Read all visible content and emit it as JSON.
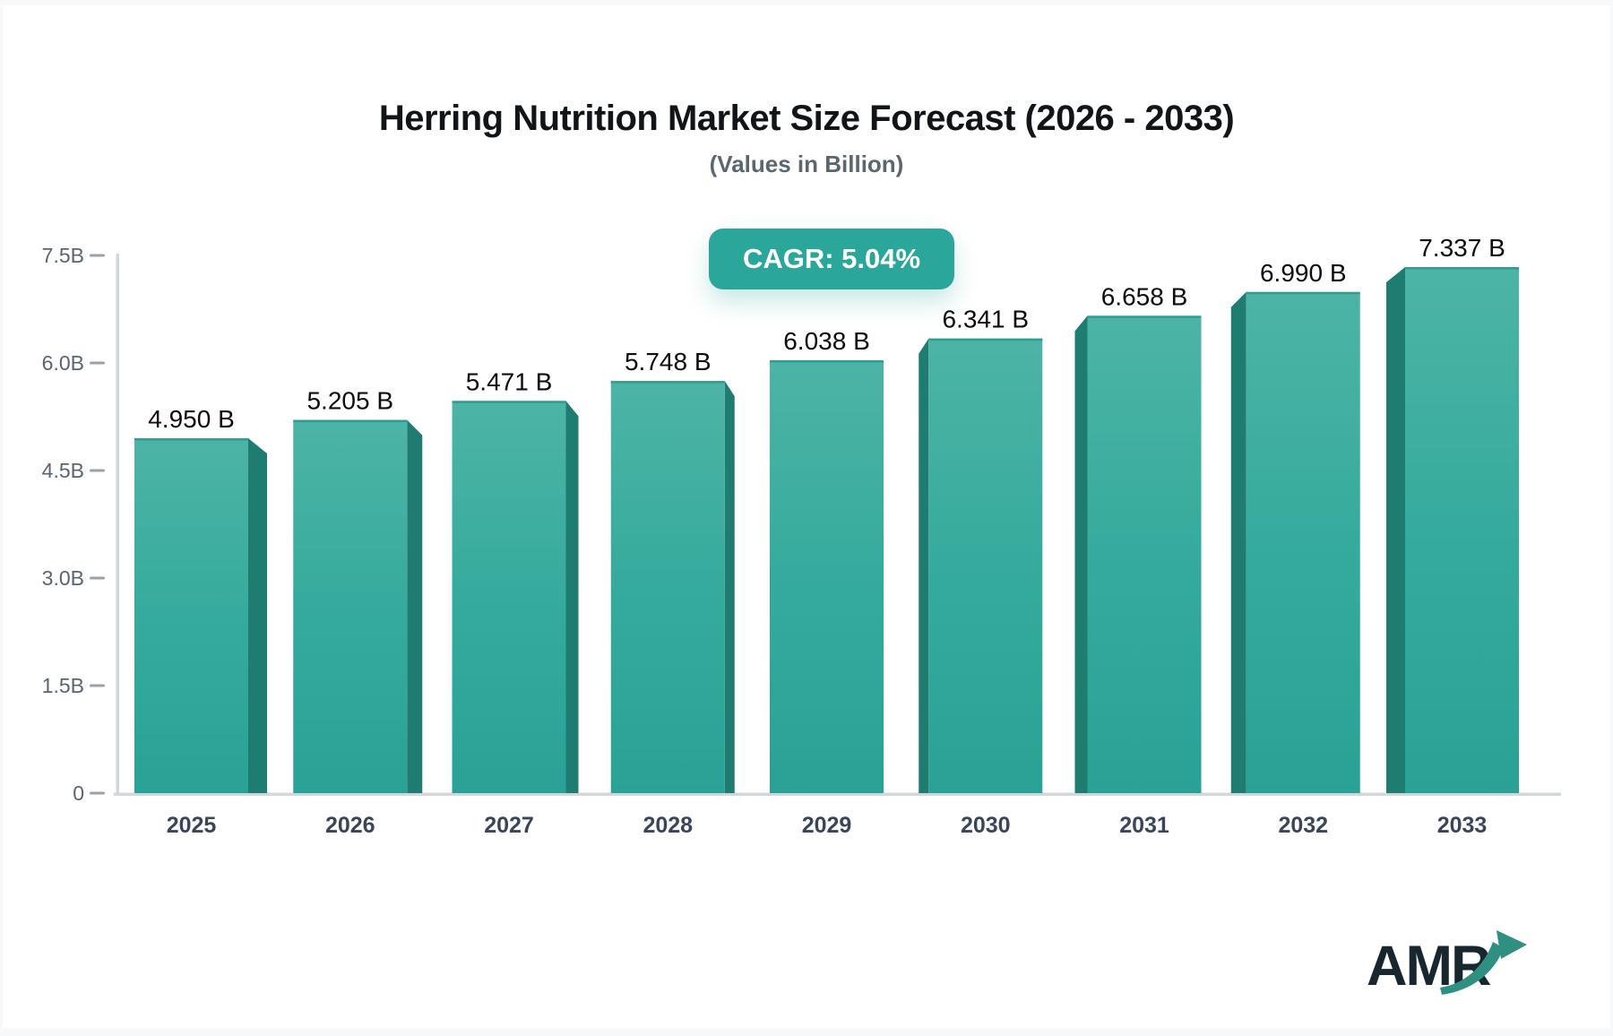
{
  "page": {
    "logo_text": "AMR"
  },
  "colors": {
    "accent_teal": "#2aa79a",
    "bar_face_top": "#4db4a6",
    "bar_face_bottom": "#29a295",
    "bar_side": "#1e7d70",
    "bar_top_rim": "#2f9d90",
    "axis_line": "#d2d7dd",
    "tick_dash": "#99a1ab",
    "title_text": "#121517",
    "subtitle_text": "#5b6770",
    "value_label_text": "#0c0d0e",
    "x_label_text": "#3a4559",
    "y_label_text": "#5a6470",
    "badge_text": "#ffffff",
    "logo_text": "#17262f",
    "logo_arrow": "#2f9082",
    "page_edge": "#f7f8fa"
  },
  "chart_data": {
    "type": "bar",
    "title": "Herring Nutrition Market Size Forecast (2026 - 2033)",
    "subtitle": "(Values in Billion)",
    "annotation": "CAGR: 5.04%",
    "categories": [
      "2025",
      "2026",
      "2027",
      "2028",
      "2029",
      "2030",
      "2031",
      "2032",
      "2033"
    ],
    "values": [
      4.95,
      5.205,
      5.471,
      5.748,
      6.038,
      6.341,
      6.658,
      6.99,
      7.337
    ],
    "value_labels": [
      "4.950 B",
      "5.205 B",
      "5.471 B",
      "5.748 B",
      "6.038 B",
      "6.341 B",
      "6.658 B",
      "6.990 B",
      "7.337 B"
    ],
    "xlabel": "",
    "ylabel": "",
    "ylim": [
      0,
      7.5
    ],
    "y_ticks": [
      {
        "value": 0,
        "label": "0"
      },
      {
        "value": 1.5,
        "label": "1.5B"
      },
      {
        "value": 3.0,
        "label": "3.0B"
      },
      {
        "value": 4.5,
        "label": "4.5B"
      },
      {
        "value": 6.0,
        "label": "6.0B"
      },
      {
        "value": 7.5,
        "label": "7.5B"
      }
    ],
    "grid": false,
    "legend": false,
    "bar_style": "3d-extruded, sides angled toward center bar"
  }
}
